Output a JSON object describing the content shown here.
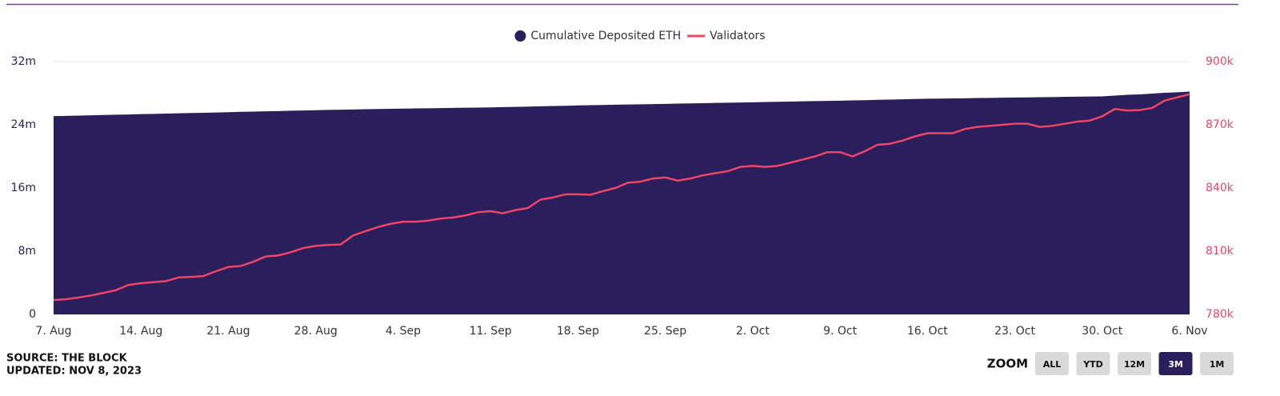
{
  "chart_data": {
    "type": "area_line",
    "categories": [
      "7. Aug",
      null,
      null,
      null,
      null,
      null,
      null,
      "14. Aug",
      null,
      null,
      null,
      null,
      null,
      null,
      "21. Aug",
      null,
      null,
      null,
      null,
      null,
      null,
      "28. Aug",
      null,
      null,
      null,
      null,
      null,
      null,
      "4. Sep",
      null,
      null,
      null,
      null,
      null,
      null,
      "11. Sep",
      null,
      null,
      null,
      null,
      null,
      null,
      "18. Sep",
      null,
      null,
      null,
      null,
      null,
      null,
      "25. Sep",
      null,
      null,
      null,
      null,
      null,
      null,
      "2. Oct",
      null,
      null,
      null,
      null,
      null,
      null,
      "9. Oct",
      null,
      null,
      null,
      null,
      null,
      null,
      "16. Oct",
      null,
      null,
      null,
      null,
      null,
      null,
      "23. Oct",
      null,
      null,
      null,
      null,
      null,
      null,
      "30. Oct",
      null,
      null,
      null,
      null,
      null,
      null,
      "6. Nov"
    ],
    "series": [
      {
        "name": "Cumulative Deposited ETH",
        "color": "#2a1f5c",
        "values": [
          25.1,
          25.13,
          25.17,
          25.2,
          25.24,
          25.28,
          25.31,
          25.35,
          25.38,
          25.42,
          25.45,
          25.49,
          25.52,
          25.56,
          25.6,
          25.64,
          25.67,
          25.71,
          25.74,
          25.78,
          25.81,
          25.85,
          25.88,
          25.91,
          25.94,
          25.97,
          26.0,
          26.02,
          26.05,
          26.07,
          26.09,
          26.11,
          26.14,
          26.16,
          26.18,
          26.2,
          26.24,
          26.27,
          26.31,
          26.34,
          26.38,
          26.41,
          26.45,
          26.48,
          26.51,
          26.54,
          26.57,
          26.6,
          26.62,
          26.65,
          26.68,
          26.71,
          26.74,
          26.77,
          26.8,
          26.82,
          26.85,
          26.88,
          26.91,
          26.94,
          26.97,
          27.0,
          27.02,
          27.05,
          27.09,
          27.12,
          27.16,
          27.19,
          27.23,
          27.26,
          27.3,
          27.32,
          27.34,
          27.36,
          27.39,
          27.41,
          27.43,
          27.45,
          27.47,
          27.49,
          27.51,
          27.54,
          27.56,
          27.58,
          27.6,
          27.7,
          27.8,
          27.85,
          27.95,
          28.05,
          28.12,
          28.2
        ]
      },
      {
        "name": "Validators",
        "color": "#ef4466",
        "axis": "y2",
        "values": [
          786.8,
          787.2,
          788.0,
          789.0,
          790.2,
          791.5,
          794.0,
          794.8,
          795.3,
          795.8,
          797.5,
          797.8,
          798.2,
          800.5,
          802.5,
          803.0,
          805.0,
          807.5,
          808.0,
          809.5,
          811.5,
          812.5,
          813.0,
          813.2,
          817.5,
          819.5,
          821.5,
          823.0,
          824.0,
          824.0,
          824.5,
          825.5,
          826.0,
          827.0,
          828.5,
          829.0,
          828.0,
          829.5,
          830.5,
          834.5,
          835.5,
          837.0,
          837.0,
          836.8,
          838.5,
          840.0,
          842.5,
          843.0,
          844.5,
          845.0,
          843.5,
          844.5,
          846.0,
          847.0,
          848.0,
          850.0,
          850.5,
          850.0,
          850.5,
          852.0,
          853.5,
          855.0,
          857.0,
          857.0,
          855.0,
          857.5,
          860.5,
          861.0,
          862.5,
          864.5,
          866.0,
          866.0,
          866.0,
          868.0,
          869.0,
          869.5,
          870.0,
          870.5,
          870.5,
          869.0,
          869.5,
          870.5,
          871.5,
          872.0,
          874.0,
          877.5,
          876.8,
          877.0,
          878.0,
          881.5,
          883.0,
          884.5
        ]
      }
    ],
    "ylim": [
      0,
      32
    ],
    "yticks": [
      0,
      {
        "value": 8,
        "label": "8m"
      },
      {
        "value": 16,
        "label": "16m"
      },
      {
        "value": 24,
        "label": "24m"
      },
      {
        "value": 32,
        "label": "32m"
      }
    ],
    "y2lim": [
      780,
      900
    ],
    "y2ticks": [
      {
        "value": 780,
        "label": "780k"
      },
      {
        "value": 810,
        "label": "810k"
      },
      {
        "value": 840,
        "label": "840k"
      },
      {
        "value": 870,
        "label": "870k"
      },
      {
        "value": 900,
        "label": "900k"
      }
    ],
    "grid": true,
    "legend": "top"
  },
  "footer": {
    "source": "SOURCE: THE BLOCK",
    "updated": "UPDATED: NOV 8, 2023"
  },
  "zoom": {
    "label": "ZOOM",
    "buttons": [
      "ALL",
      "YTD",
      "12M",
      "3M",
      "1M"
    ],
    "active": 3
  }
}
